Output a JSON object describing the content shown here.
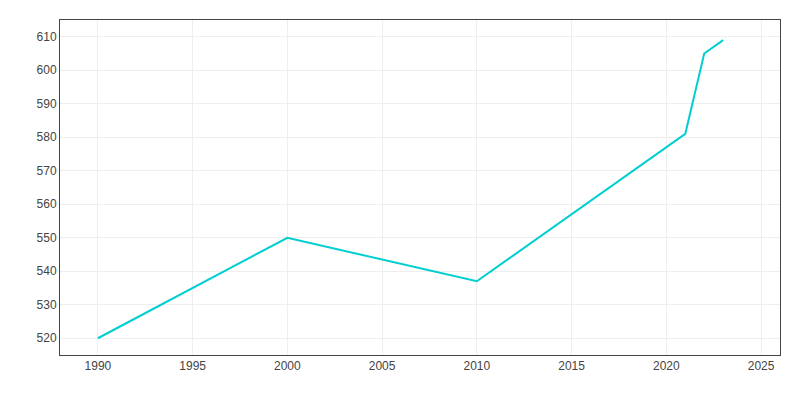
{
  "chart_data": {
    "type": "line",
    "x": [
      1990,
      2000,
      2010,
      2021,
      2022,
      2023
    ],
    "values": [
      520,
      550,
      537,
      581,
      605,
      609
    ],
    "color": "#00CED1",
    "xlim": [
      1988,
      2026
    ],
    "ylim": [
      515,
      615
    ],
    "xticks": [
      1990,
      1995,
      2000,
      2005,
      2010,
      2015,
      2020,
      2025
    ],
    "yticks": [
      520,
      530,
      540,
      550,
      560,
      570,
      580,
      590,
      600,
      610
    ],
    "grid": true
  }
}
